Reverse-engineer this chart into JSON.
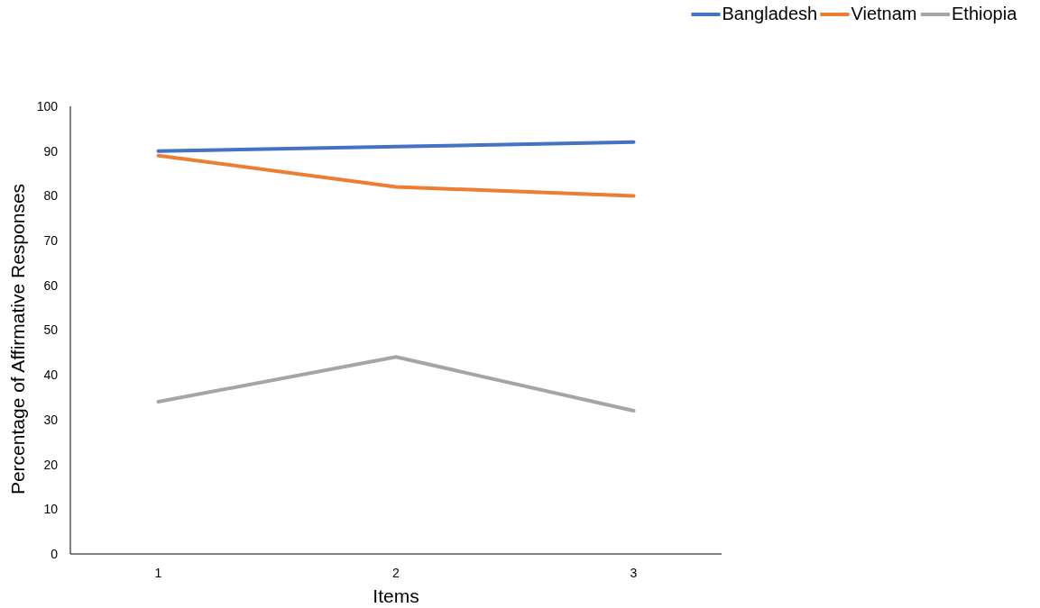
{
  "chart_data": {
    "type": "line",
    "xlabel": "Items",
    "ylabel": "Percentage of Affirmative Responses",
    "categories": [
      "1",
      "2",
      "3"
    ],
    "series": [
      {
        "name": "Bangladesh",
        "color": "#4472c4",
        "values": [
          90,
          91,
          92
        ]
      },
      {
        "name": "Vietnam",
        "color": "#ed7d31",
        "values": [
          89,
          82,
          80
        ]
      },
      {
        "name": "Ethiopia",
        "color": "#a5a5a5",
        "values": [
          34,
          44,
          32
        ]
      }
    ],
    "ylim": [
      0,
      100
    ],
    "yticks": [
      0,
      10,
      20,
      30,
      40,
      50,
      60,
      70,
      80,
      90,
      100
    ],
    "grid": false,
    "legend": "top right",
    "marker": "none",
    "line_style": "solid"
  }
}
